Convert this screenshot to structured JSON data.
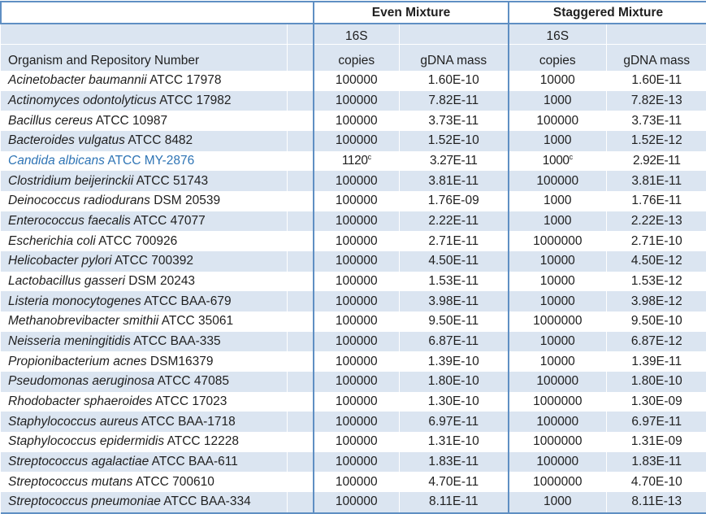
{
  "colors": {
    "border_blue": "#5f8fc3",
    "row_shade": "#dbe5f1",
    "highlight_text": "#2e74b5",
    "text": "#1f1f1f"
  },
  "table": {
    "group_headers": {
      "even": "Even Mixture",
      "staggered": "Staggered Mixture"
    },
    "sub_headers": {
      "s16": "16S",
      "organism": "Organism and Repository Number",
      "copies": "copies",
      "gdna": "gDNA mass"
    },
    "rows": [
      {
        "name": "Acinetobacter baumannii",
        "repo": "ATCC 17978",
        "even_copies": "100000",
        "even_gdna": "1.60E-10",
        "stag_copies": "10000",
        "stag_gdna": "1.60E-11"
      },
      {
        "name": "Actinomyces odontolyticus",
        "repo": "ATCC 17982",
        "even_copies": "100000",
        "even_gdna": "7.82E-11",
        "stag_copies": "1000",
        "stag_gdna": "7.82E-13"
      },
      {
        "name": "Bacillus cereus",
        "repo": "ATCC 10987",
        "even_copies": "100000",
        "even_gdna": "3.73E-11",
        "stag_copies": "100000",
        "stag_gdna": "3.73E-11"
      },
      {
        "name": "Bacteroides vulgatus",
        "repo": "ATCC 8482",
        "even_copies": "100000",
        "even_gdna": "1.52E-10",
        "stag_copies": "1000",
        "stag_gdna": "1.52E-12"
      },
      {
        "name": "Candida albicans",
        "repo": "ATCC MY-2876",
        "even_copies": "1120^c",
        "even_gdna": "3.27E-11",
        "stag_copies": "1000^c",
        "stag_gdna": "2.92E-11",
        "highlight": true
      },
      {
        "name": "Clostridium beijerinckii",
        "repo": "ATCC 51743",
        "even_copies": "100000",
        "even_gdna": "3.81E-11",
        "stag_copies": "100000",
        "stag_gdna": "3.81E-11"
      },
      {
        "name": "Deinococcus radiodurans",
        "repo": "DSM 20539",
        "even_copies": "100000",
        "even_gdna": "1.76E-09",
        "stag_copies": "1000",
        "stag_gdna": "1.76E-11"
      },
      {
        "name": "Enterococcus faecalis",
        "repo": "ATCC 47077",
        "even_copies": "100000",
        "even_gdna": "2.22E-11",
        "stag_copies": "1000",
        "stag_gdna": "2.22E-13"
      },
      {
        "name": "Escherichia coli",
        "repo": "ATCC 700926",
        "even_copies": "100000",
        "even_gdna": "2.71E-11",
        "stag_copies": "1000000",
        "stag_gdna": "2.71E-10"
      },
      {
        "name": "Helicobacter pylori",
        "repo": "ATCC 700392",
        "even_copies": "100000",
        "even_gdna": "4.50E-11",
        "stag_copies": "10000",
        "stag_gdna": "4.50E-12"
      },
      {
        "name": "Lactobacillus gasseri",
        "repo": "DSM 20243",
        "even_copies": "100000",
        "even_gdna": "1.53E-11",
        "stag_copies": "10000",
        "stag_gdna": "1.53E-12"
      },
      {
        "name": "Listeria monocytogenes",
        "repo": "ATCC BAA-679",
        "even_copies": "100000",
        "even_gdna": "3.98E-11",
        "stag_copies": "10000",
        "stag_gdna": "3.98E-12"
      },
      {
        "name": "Methanobrevibacter smithii",
        "repo": "ATCC 35061",
        "even_copies": "100000",
        "even_gdna": "9.50E-11",
        "stag_copies": "1000000",
        "stag_gdna": "9.50E-10"
      },
      {
        "name": "Neisseria meningitidis",
        "repo": "ATCC BAA-335",
        "even_copies": "100000",
        "even_gdna": "6.87E-11",
        "stag_copies": "10000",
        "stag_gdna": "6.87E-12"
      },
      {
        "name": "Propionibacterium acnes",
        "repo": "DSM16379",
        "even_copies": "100000",
        "even_gdna": "1.39E-10",
        "stag_copies": "10000",
        "stag_gdna": "1.39E-11"
      },
      {
        "name": "Pseudomonas aeruginosa",
        "repo": "ATCC 47085",
        "even_copies": "100000",
        "even_gdna": "1.80E-10",
        "stag_copies": "100000",
        "stag_gdna": "1.80E-10"
      },
      {
        "name": "Rhodobacter sphaeroides",
        "repo": "ATCC 17023",
        "even_copies": "100000",
        "even_gdna": "1.30E-10",
        "stag_copies": "1000000",
        "stag_gdna": "1.30E-09"
      },
      {
        "name": "Staphylococcus aureus",
        "repo": "ATCC BAA-1718",
        "even_copies": "100000",
        "even_gdna": "6.97E-11",
        "stag_copies": "100000",
        "stag_gdna": "6.97E-11"
      },
      {
        "name": "Staphylococcus epidermidis",
        "repo": "ATCC 12228",
        "even_copies": "100000",
        "even_gdna": "1.31E-10",
        "stag_copies": "1000000",
        "stag_gdna": "1.31E-09"
      },
      {
        "name": "Streptococcus agalactiae",
        "repo": "ATCC BAA-611",
        "even_copies": "100000",
        "even_gdna": "1.83E-11",
        "stag_copies": "100000",
        "stag_gdna": "1.83E-11"
      },
      {
        "name": "Streptococcus mutans",
        "repo": "ATCC 700610",
        "even_copies": "100000",
        "even_gdna": "4.70E-11",
        "stag_copies": "1000000",
        "stag_gdna": "4.70E-10"
      },
      {
        "name": "Streptococcus pneumoniae",
        "repo": "ATCC BAA-334",
        "even_copies": "100000",
        "even_gdna": "8.11E-11",
        "stag_copies": "1000",
        "stag_gdna": "8.11E-13"
      }
    ]
  }
}
